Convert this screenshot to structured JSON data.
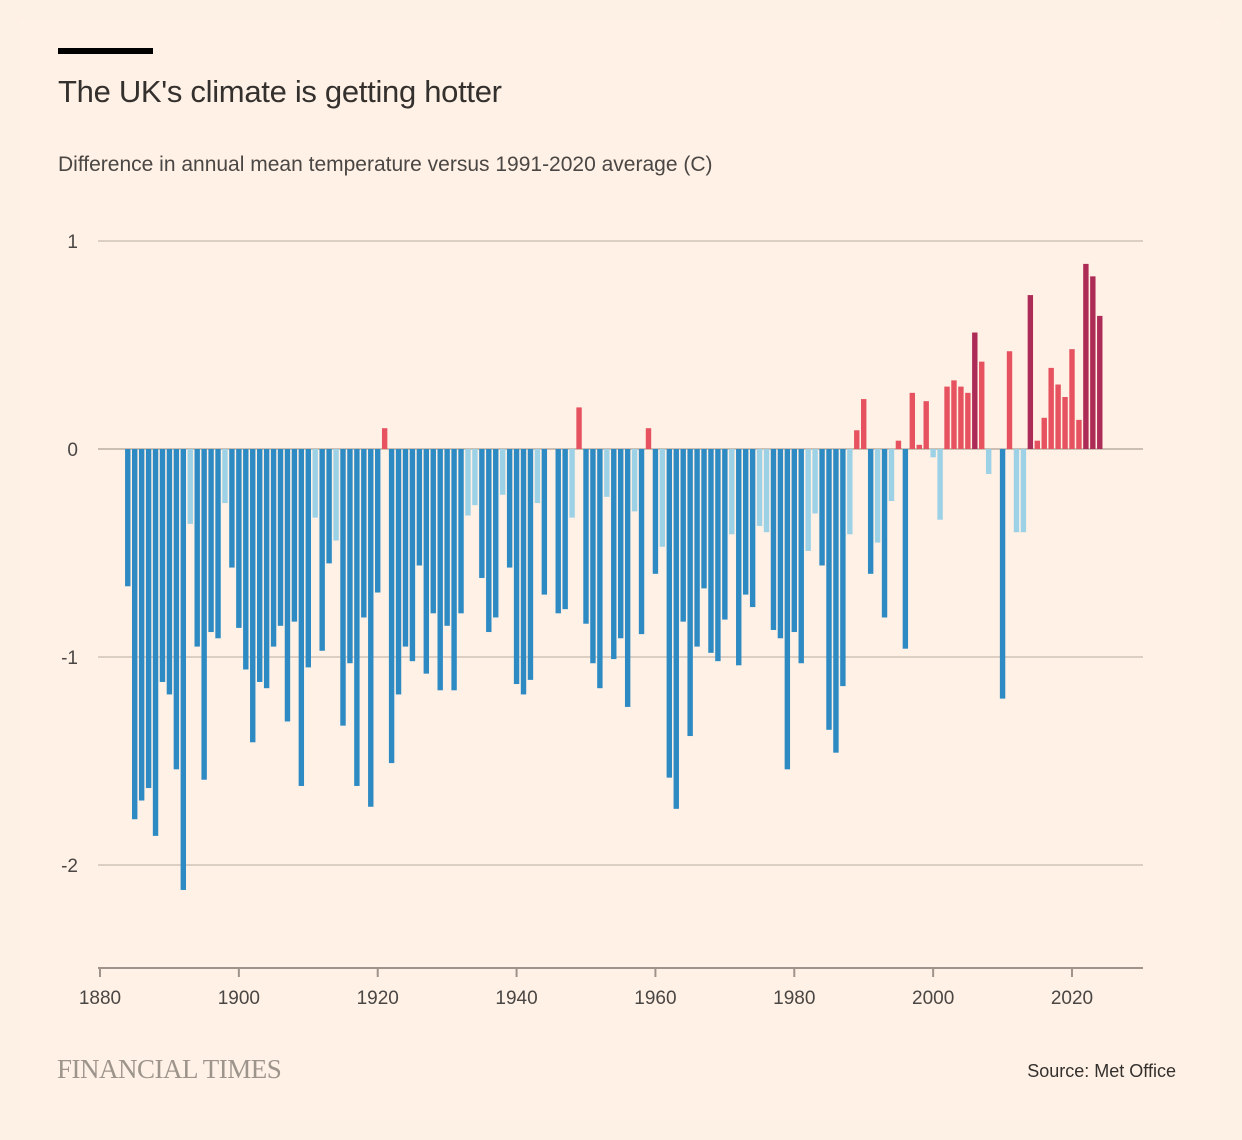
{
  "header": {
    "title": "The UK's climate is getting hotter",
    "subtitle": "Difference in annual mean temperature versus 1991-2020 average (C)"
  },
  "footer": {
    "brand": "FINANCIAL TIMES",
    "source": "Source: Met Office"
  },
  "colors": {
    "cold": "#2d8ac3",
    "cool": "#9dd2e6",
    "warm": "#e6525f",
    "hot": "#ad2c57",
    "background": "#fff1e5"
  },
  "chart_data": {
    "type": "bar",
    "title": "The UK's climate is getting hotter",
    "subtitle": "Difference in annual mean temperature versus 1991-2020 average (C)",
    "xlabel": "",
    "ylabel": "",
    "xlim": [
      1880,
      2030
    ],
    "ylim": [
      -2.5,
      1
    ],
    "grid": true,
    "yticks": [
      {
        "value": 1,
        "label": "1"
      },
      {
        "value": 0,
        "label": "0"
      },
      {
        "value": -1,
        "label": "-1"
      },
      {
        "value": -2,
        "label": "-2"
      }
    ],
    "xticks": [
      {
        "value": 1880,
        "label": "1880"
      },
      {
        "value": 1900,
        "label": "1900"
      },
      {
        "value": 1920,
        "label": "1920"
      },
      {
        "value": 1940,
        "label": "1940"
      },
      {
        "value": 1960,
        "label": "1960"
      },
      {
        "value": 1980,
        "label": "1980"
      },
      {
        "value": 2000,
        "label": "2000"
      },
      {
        "value": 2020,
        "label": "2020"
      }
    ],
    "color_rule": "cold: <= -0.5; cool: -0.5 to 0; warm: 0 to 0.5; hot: >= 0.5",
    "x": [
      1884,
      1885,
      1886,
      1887,
      1888,
      1889,
      1890,
      1891,
      1892,
      1893,
      1894,
      1895,
      1896,
      1897,
      1898,
      1899,
      1900,
      1901,
      1902,
      1903,
      1904,
      1905,
      1906,
      1907,
      1908,
      1909,
      1910,
      1911,
      1912,
      1913,
      1914,
      1915,
      1916,
      1917,
      1918,
      1919,
      1920,
      1921,
      1922,
      1923,
      1924,
      1925,
      1926,
      1927,
      1928,
      1929,
      1930,
      1931,
      1932,
      1933,
      1934,
      1935,
      1936,
      1937,
      1938,
      1939,
      1940,
      1941,
      1942,
      1943,
      1944,
      1945,
      1946,
      1947,
      1948,
      1949,
      1950,
      1951,
      1952,
      1953,
      1954,
      1955,
      1956,
      1957,
      1958,
      1959,
      1960,
      1961,
      1962,
      1963,
      1964,
      1965,
      1966,
      1967,
      1968,
      1969,
      1970,
      1971,
      1972,
      1973,
      1974,
      1975,
      1976,
      1977,
      1978,
      1979,
      1980,
      1981,
      1982,
      1983,
      1984,
      1985,
      1986,
      1987,
      1988,
      1989,
      1990,
      1991,
      1992,
      1993,
      1994,
      1995,
      1996,
      1997,
      1998,
      1999,
      2000,
      2001,
      2002,
      2003,
      2004,
      2005,
      2006,
      2007,
      2008,
      2009,
      2010,
      2011,
      2012,
      2013,
      2014,
      2015,
      2016,
      2017,
      2018,
      2019,
      2020,
      2021,
      2022,
      2023,
      2024
    ],
    "values": [
      -0.66,
      -1.78,
      -1.69,
      -1.63,
      -1.86,
      -1.12,
      -1.18,
      -1.54,
      -2.12,
      -0.36,
      -0.95,
      -1.59,
      -0.88,
      -0.91,
      -0.26,
      -0.57,
      -0.86,
      -1.06,
      -1.41,
      -1.12,
      -1.15,
      -0.95,
      -0.85,
      -1.31,
      -0.83,
      -1.62,
      -1.05,
      -0.33,
      -0.97,
      -0.55,
      -0.44,
      -1.33,
      -1.03,
      -1.62,
      -0.81,
      -1.72,
      -0.69,
      0.1,
      -1.51,
      -1.18,
      -0.95,
      -1.02,
      -0.56,
      -1.08,
      -0.79,
      -1.16,
      -0.85,
      -1.16,
      -0.79,
      -0.32,
      -0.27,
      -0.62,
      -0.88,
      -0.81,
      -0.22,
      -0.57,
      -1.13,
      -1.18,
      -1.11,
      -0.26,
      -0.7,
      0.0,
      -0.79,
      -0.77,
      -0.33,
      0.2,
      -0.84,
      -1.03,
      -1.15,
      -0.23,
      -1.01,
      -0.91,
      -1.24,
      -0.3,
      -0.89,
      0.1,
      -0.6,
      -0.47,
      -1.58,
      -1.73,
      -0.83,
      -1.38,
      -0.95,
      -0.67,
      -0.98,
      -1.02,
      -0.82,
      -0.41,
      -1.04,
      -0.7,
      -0.76,
      -0.37,
      -0.4,
      -0.87,
      -0.91,
      -1.54,
      -0.88,
      -1.03,
      -0.49,
      -0.31,
      -0.56,
      -1.35,
      -1.46,
      -1.14,
      -0.41,
      0.09,
      0.24,
      -0.6,
      -0.45,
      -0.81,
      -0.25,
      0.04,
      -0.96,
      0.27,
      0.02,
      0.23,
      -0.04,
      -0.34,
      0.3,
      0.33,
      0.3,
      0.27,
      0.56,
      0.42,
      -0.12,
      0.0,
      -1.2,
      0.47,
      -0.4,
      -0.4,
      0.74,
      0.04,
      0.15,
      0.39,
      0.31,
      0.25,
      0.48,
      0.14,
      0.89,
      0.83,
      0.64
    ]
  }
}
